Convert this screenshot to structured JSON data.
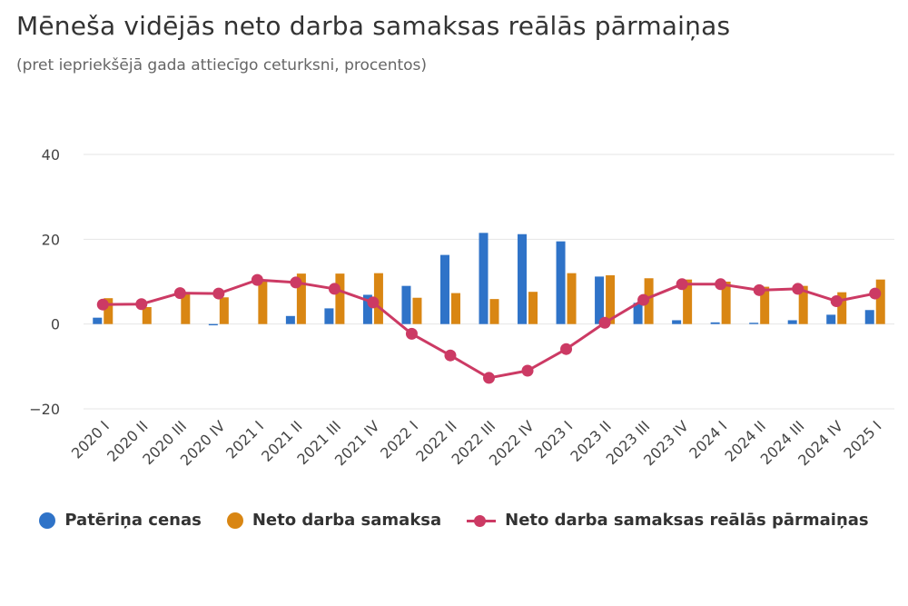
{
  "title": "Mēneša vidējās neto darba samaksas reālās pārmaiņas",
  "subtitle": "(pret iepriekšējā gada attiecīgo ceturksni, procentos)",
  "colors": {
    "cpi": "#2f73c8",
    "wage": "#d98613",
    "real": "#cc3a64",
    "grid": "#e4e4e4"
  },
  "legend": {
    "cpi": "Patēriņa cenas",
    "wage": "Neto darba samaksa",
    "real": "Neto darba samaksas reālās pārmaiņas"
  },
  "chart_data": {
    "type": "bar",
    "categories": [
      "2020 I",
      "2020 II",
      "2020 III",
      "2020 IV",
      "2021 I",
      "2021 II",
      "2021 III",
      "2021 IV",
      "2022 I",
      "2022 II",
      "2022 III",
      "2022 IV",
      "2023 I",
      "2023 II",
      "2023 III",
      "2023 IV",
      "2024 I",
      "2024 II",
      "2024 III",
      "2024 IV",
      "2025 I"
    ],
    "ylim": [
      -20,
      40
    ],
    "yticks": [
      -20,
      0,
      20,
      40
    ],
    "ytick_labels": [
      "−20",
      "0",
      "20",
      "40"
    ],
    "grid": true,
    "legend_position": "bottom",
    "series": [
      {
        "name": "Patēriņa cenas",
        "type": "bar",
        "values": [
          1.5,
          0.0,
          0.0,
          -0.3,
          0.0,
          1.9,
          3.7,
          6.9,
          9.0,
          16.3,
          21.5,
          21.2,
          19.5,
          11.2,
          5.0,
          0.9,
          0.4,
          0.3,
          0.9,
          2.2,
          3.3
        ]
      },
      {
        "name": "Neto darba samaksa",
        "type": "bar",
        "values": [
          6.1,
          4.0,
          7.3,
          6.3,
          10.3,
          11.9,
          11.9,
          12.0,
          6.2,
          7.3,
          5.9,
          7.6,
          12.0,
          11.5,
          10.8,
          10.5,
          10.0,
          8.8,
          9.0,
          7.5,
          10.5
        ]
      },
      {
        "name": "Neto darba samaksas reālās pārmaiņas",
        "type": "line",
        "values": [
          4.6,
          4.7,
          7.3,
          7.2,
          10.4,
          9.8,
          8.3,
          5.1,
          -2.3,
          -7.4,
          -12.7,
          -11.0,
          -5.9,
          0.3,
          5.7,
          9.4,
          9.4,
          8.0,
          8.3,
          5.4,
          7.2
        ]
      }
    ]
  }
}
